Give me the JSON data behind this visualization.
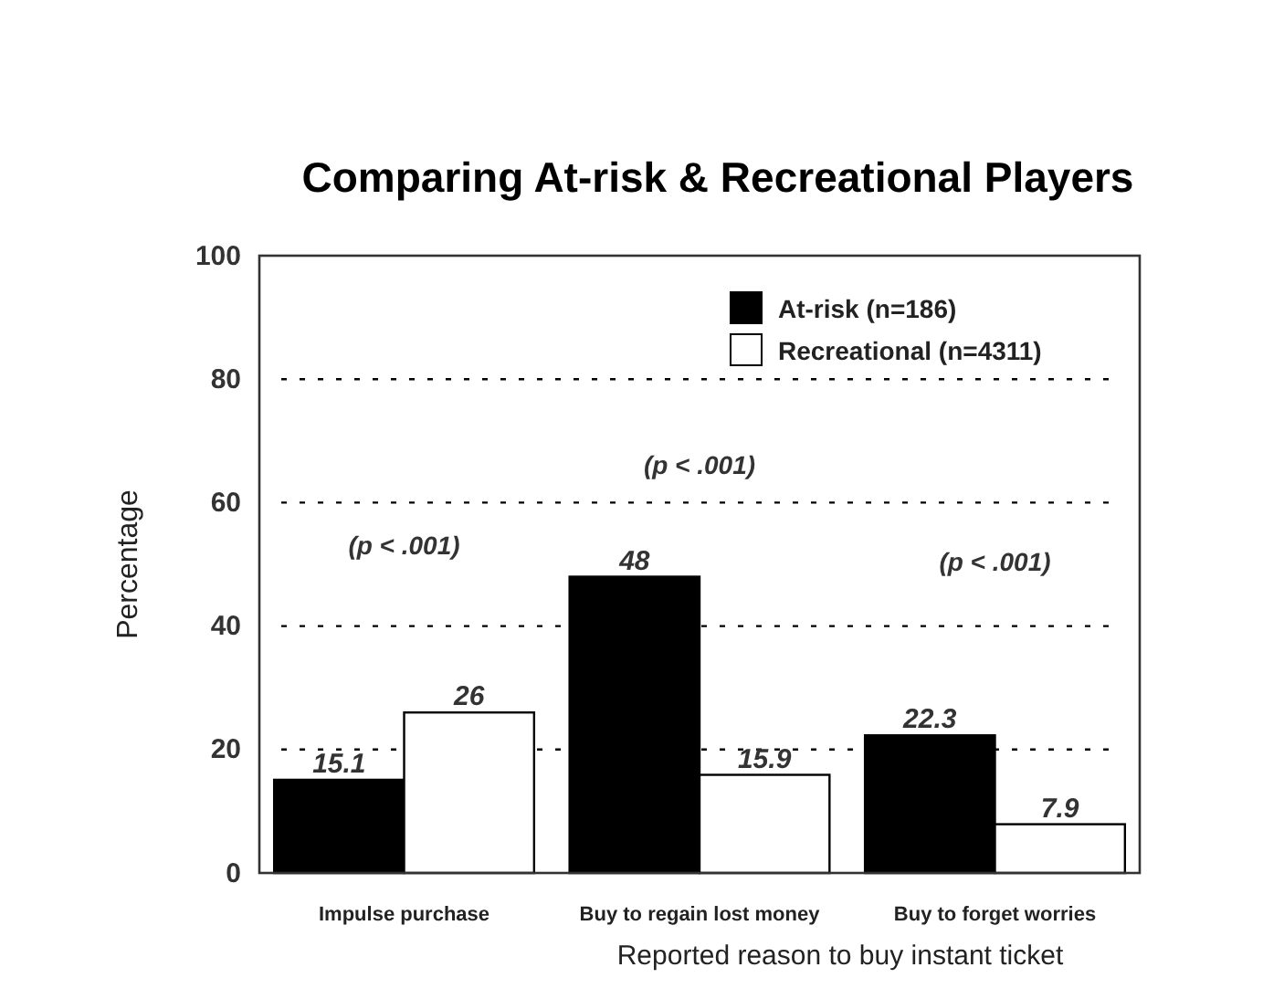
{
  "chart_data": {
    "type": "bar",
    "title": "Comparing At-risk & Recreational Players",
    "xlabel": "Reported reason to buy instant ticket",
    "ylabel": "Percentage",
    "categories": [
      "Impulse purchase",
      "Buy to regain lost money",
      "Buy to forget worries"
    ],
    "series": [
      {
        "name": "At-risk (n=186)",
        "color": "#000000",
        "values": [
          15.1,
          48,
          22.3
        ]
      },
      {
        "name": "Recreational (n=4311)",
        "color": "#ffffff",
        "values": [
          26,
          15.9,
          7.9
        ]
      }
    ],
    "ylim": [
      0,
      100
    ],
    "yticks": [
      0,
      20,
      40,
      60,
      80,
      100
    ],
    "grid": "y",
    "legend": "top right",
    "data_labels": true,
    "annotations": [
      "(p < .001)",
      "(p < .001)",
      "(p < .001)"
    ]
  }
}
